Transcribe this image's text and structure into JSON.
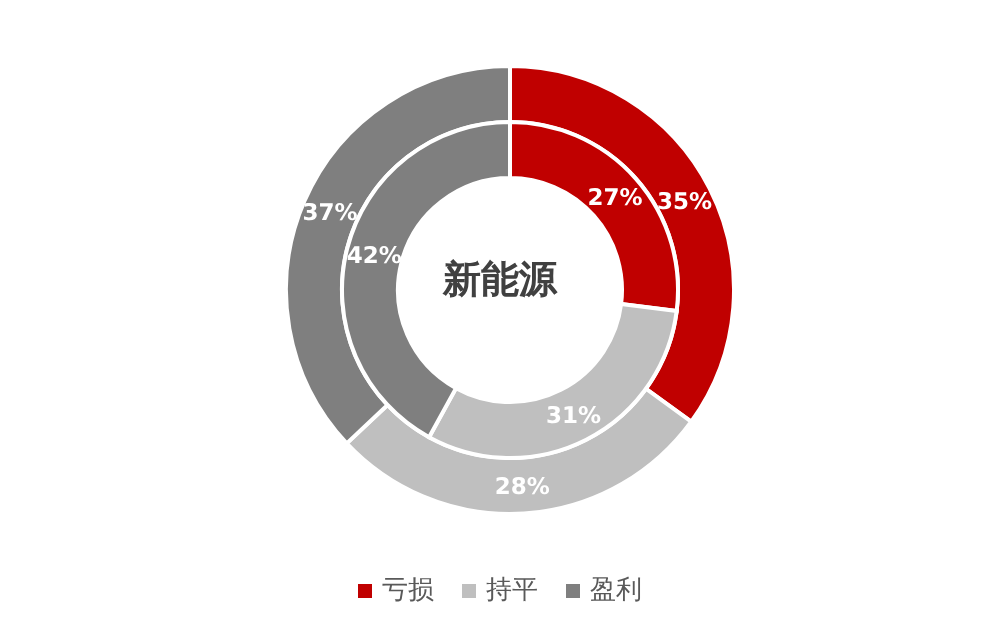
{
  "chart_data": {
    "type": "donut",
    "title": "新能源",
    "categories": [
      "亏损",
      "持平",
      "盈利"
    ],
    "colors": [
      "#c00000",
      "#bfbfbf",
      "#7f7f7f"
    ],
    "legend": "bottom",
    "series": [
      {
        "values": [
          35,
          28,
          37
        ],
        "value_labels": [
          "35%",
          "28%",
          "37%"
        ]
      },
      {
        "values": [
          27,
          31,
          42
        ],
        "value_labels": [
          "27%",
          "31%",
          "42%"
        ]
      }
    ]
  }
}
